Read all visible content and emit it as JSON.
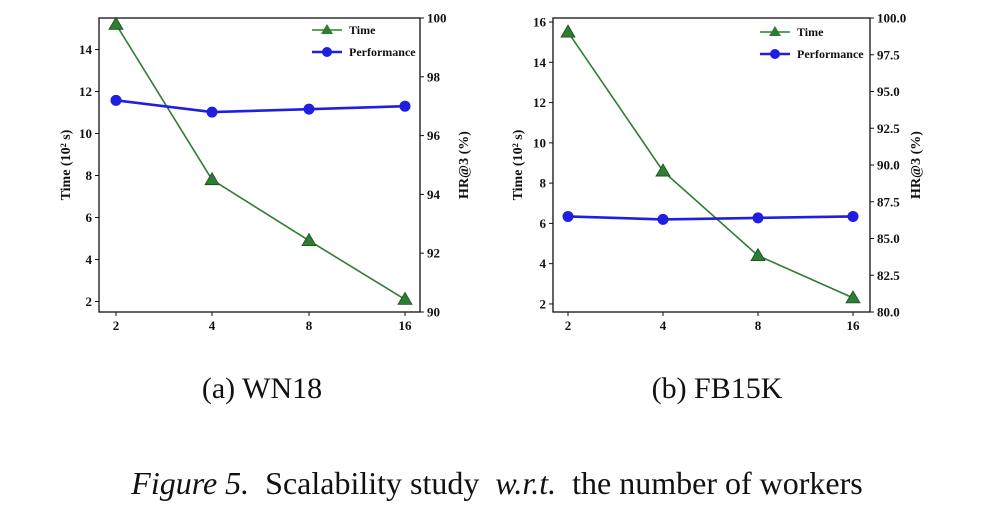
{
  "caption": {
    "prefix": "Figure 5.",
    "middle": "Scalability study",
    "wrt": "w.r.t.",
    "suffix": "the number of workers"
  },
  "chart_data": [
    {
      "type": "line",
      "subtitle": "(a)  WN18",
      "categories": [
        "2",
        "4",
        "8",
        "16"
      ],
      "ylabel": "Time (10² s)",
      "ylabel2": "HR@3 (%)",
      "ylim": [
        1.5,
        15.5
      ],
      "yticks": [
        2,
        4,
        6,
        8,
        10,
        12,
        14
      ],
      "ylim2": [
        90,
        100
      ],
      "yticks2": [
        90,
        92,
        94,
        96,
        98,
        100
      ],
      "legend_position": "top-right",
      "grid": false,
      "series": [
        {
          "name": "Time",
          "axis": "left",
          "marker": "triangle",
          "color": "#2e7d32",
          "values": [
            15.2,
            7.8,
            4.9,
            2.1
          ]
        },
        {
          "name": "Performance",
          "axis": "right",
          "marker": "circle",
          "color": "#1f1fe0",
          "values": [
            97.2,
            96.8,
            96.9,
            97.0
          ]
        }
      ]
    },
    {
      "type": "line",
      "subtitle": "(b)  FB15K",
      "categories": [
        "2",
        "4",
        "8",
        "16"
      ],
      "ylabel": "Time (10² s)",
      "ylabel2": "HR@3 (%)",
      "ylim": [
        1.6,
        16.2
      ],
      "yticks": [
        2,
        4,
        6,
        8,
        10,
        12,
        14,
        16
      ],
      "ylim2": [
        80,
        100
      ],
      "yticks2": [
        "80.0",
        "82.5",
        "85.0",
        "87.5",
        "90.0",
        "92.5",
        "95.0",
        "97.5",
        "100.0"
      ],
      "legend_position": "top-right",
      "grid": false,
      "series": [
        {
          "name": "Time",
          "axis": "left",
          "marker": "triangle",
          "color": "#2e7d32",
          "values": [
            15.5,
            8.6,
            4.4,
            2.3
          ]
        },
        {
          "name": "Performance",
          "axis": "right",
          "marker": "circle",
          "color": "#1f1fe0",
          "values": [
            86.5,
            86.3,
            86.4,
            86.5
          ]
        }
      ]
    }
  ]
}
